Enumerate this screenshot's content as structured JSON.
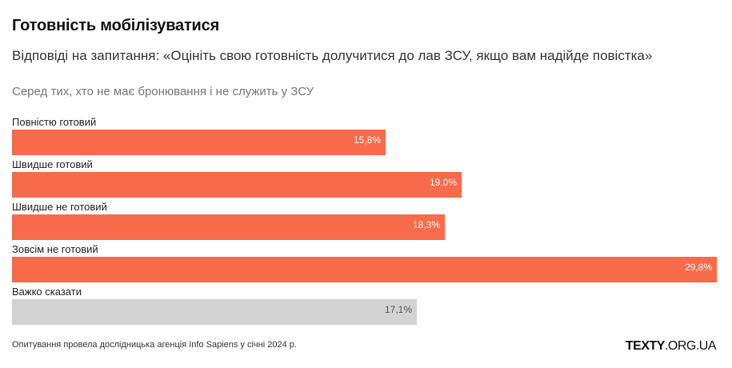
{
  "header": {
    "title": "Готовність мобілізуватися",
    "subtitle": "Відповіді на запитання: «Оцініть свою готовність долучитися до лав ЗСУ, якщо вам надійде повістка»",
    "note": "Серед тих, хто не має бронювання і не служить у ЗСУ"
  },
  "footer": {
    "source": "Опитування провела дослідницька агенція Info Sapiens у січні 2024 р.",
    "logo_bold": "TEXTY",
    "logo_rest": ".ORG.UA"
  },
  "colors": {
    "accent": "#f76a4a",
    "neutral": "#d3d3d3"
  },
  "chart_data": {
    "type": "bar",
    "orientation": "horizontal",
    "title": "Готовність мобілізуватися",
    "xlabel": "",
    "ylabel": "",
    "xlim": [
      0,
      29.8
    ],
    "grid": false,
    "categories": [
      "Повністю готовий",
      "Швидше готовий",
      "Швидше не готовий",
      "Зовсім не готовий",
      "Важко сказати"
    ],
    "values": [
      15.8,
      19.0,
      18.3,
      29.8,
      17.1
    ],
    "value_labels": [
      "15,8%",
      "19,0%",
      "18,3%",
      "29,8%",
      "17,1%"
    ],
    "bar_colors": [
      "#f76a4a",
      "#f76a4a",
      "#f76a4a",
      "#f76a4a",
      "#d3d3d3"
    ]
  }
}
